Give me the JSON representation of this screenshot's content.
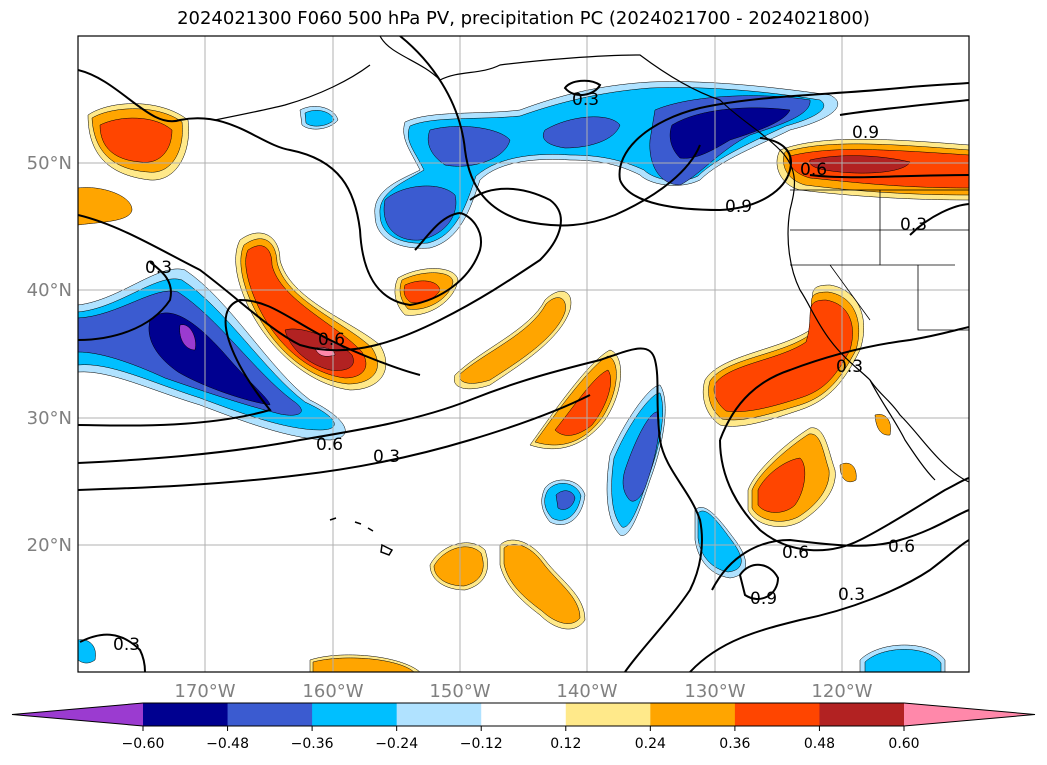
{
  "title": "2024021300 F060 500 hPa PV, precipitation PC (2024021700 - 2024021800)",
  "lat_labels": [
    "50°N",
    "40°N",
    "30°N",
    "20°N"
  ],
  "lon_labels": [
    "170°W",
    "160°W",
    "150°W",
    "140°W",
    "130°W",
    "120°W"
  ],
  "colorbar": {
    "ticks": [
      "−0.60",
      "−0.48",
      "−0.36",
      "−0.24",
      "−0.12",
      "0.12",
      "0.24",
      "0.36",
      "0.48",
      "0.60"
    ],
    "colors": [
      "#9b3bd0",
      "#000090",
      "#3b5bd0",
      "#00bfff",
      "#b0e2ff",
      "#ffffff",
      "#ffe98a",
      "#ffa500",
      "#ff4500",
      "#b22222",
      "#ff88aa"
    ]
  },
  "contour_labels": [
    "0.3",
    "0.9",
    "0.9",
    "0.6",
    "0.3",
    "0.6",
    "0.3",
    "0.6",
    "0.3",
    "0.6",
    "0.9",
    "0.3",
    "0.6",
    "0.3",
    "0.3"
  ]
}
